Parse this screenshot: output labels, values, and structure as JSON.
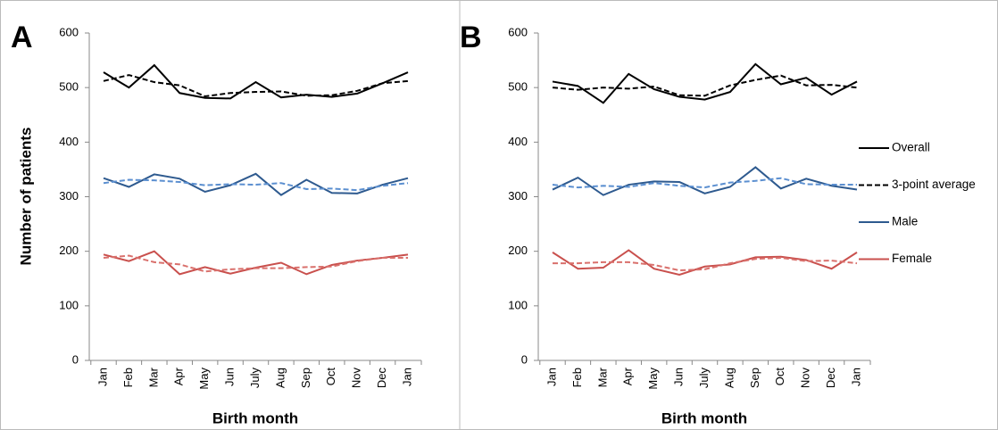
{
  "chart_data": [
    {
      "type": "line",
      "label": "A",
      "ylabel": "Number of patients",
      "xlabel": "Birth month",
      "categories": [
        "Jan",
        "Feb",
        "Mar",
        "Apr",
        "May",
        "Jun",
        "July",
        "Aug",
        "Sep",
        "Oct",
        "Nov",
        "Dec",
        "Jan"
      ],
      "ylim": [
        0,
        600
      ],
      "yticks": [
        0,
        100,
        200,
        300,
        400,
        500,
        600
      ],
      "series": [
        {
          "color": "#000000",
          "dash": false,
          "values": [
            528,
            500,
            541,
            490,
            481,
            480,
            510,
            482,
            487,
            483,
            489,
            508,
            528
          ]
        },
        {
          "color": "#000000",
          "dash": true,
          "values": [
            512,
            523,
            510,
            504,
            484,
            490,
            492,
            493,
            485,
            486,
            494,
            508,
            512
          ]
        },
        {
          "color": "#2e5a8f",
          "dash": false,
          "values": [
            334,
            318,
            341,
            333,
            309,
            321,
            342,
            303,
            331,
            307,
            306,
            322,
            334
          ]
        },
        {
          "color": "#5b8fd0",
          "dash": true,
          "values": [
            325,
            331,
            330,
            327,
            321,
            323,
            322,
            325,
            314,
            315,
            312,
            320,
            325
          ]
        },
        {
          "color": "#c9504d",
          "dash": false,
          "values": [
            194,
            182,
            200,
            158,
            171,
            159,
            170,
            179,
            158,
            175,
            183,
            188,
            194
          ]
        },
        {
          "color": "#d9706c",
          "dash": true,
          "values": [
            188,
            192,
            180,
            176,
            163,
            167,
            169,
            169,
            171,
            172,
            182,
            188,
            188
          ]
        }
      ]
    },
    {
      "type": "line",
      "label": "B",
      "xlabel": "Birth month",
      "legend": "right",
      "categories": [
        "Jan",
        "Feb",
        "Mar",
        "Apr",
        "May",
        "Jun",
        "July",
        "Aug",
        "Sep",
        "Oct",
        "Nov",
        "Dec",
        "Jan"
      ],
      "ylim": [
        0,
        600
      ],
      "yticks": [
        0,
        100,
        200,
        300,
        400,
        500,
        600
      ],
      "series": [
        {
          "name": "Overall",
          "color": "#000000",
          "dash": false,
          "values": [
            511,
            503,
            472,
            525,
            497,
            483,
            478,
            492,
            543,
            506,
            518,
            487,
            511
          ]
        },
        {
          "name": "3-point average",
          "color": "#000000",
          "dash": true,
          "values": [
            500,
            496,
            500,
            498,
            502,
            486,
            485,
            504,
            514,
            522,
            504,
            505,
            500
          ]
        },
        {
          "name": "Male",
          "color": "#2e5a8f",
          "dash": false,
          "values": [
            313,
            335,
            303,
            322,
            328,
            327,
            306,
            318,
            354,
            315,
            333,
            320,
            313
          ]
        },
        {
          "color": "#5b8fd0",
          "dash": true,
          "values": [
            322,
            317,
            320,
            318,
            325,
            320,
            317,
            326,
            329,
            334,
            323,
            322,
            322
          ]
        },
        {
          "name": "Female",
          "color": "#c9504d",
          "dash": false,
          "values": [
            198,
            168,
            170,
            202,
            168,
            157,
            172,
            176,
            189,
            190,
            184,
            168,
            198
          ]
        },
        {
          "color": "#d9706c",
          "dash": true,
          "values": [
            178,
            178,
            180,
            180,
            175,
            165,
            167,
            178,
            186,
            188,
            182,
            183,
            178
          ]
        }
      ]
    }
  ]
}
